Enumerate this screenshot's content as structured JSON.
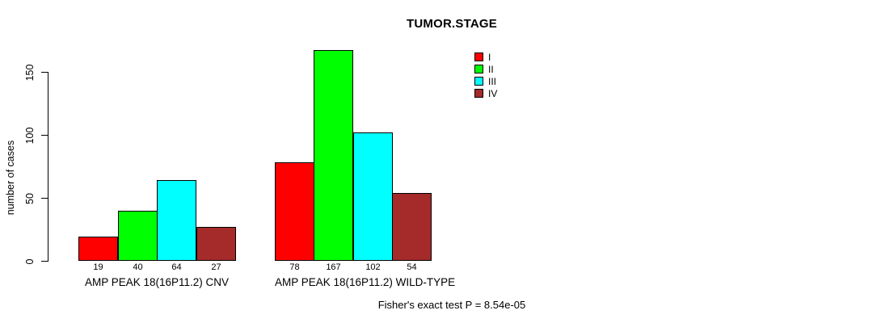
{
  "chart_data": {
    "type": "bar",
    "title": "TUMOR.STAGE",
    "ylabel": "number of cases",
    "xlabel": "",
    "ylim": [
      0,
      150
    ],
    "yticks": [
      0,
      50,
      100,
      150
    ],
    "grid": false,
    "legend_position": "top-right",
    "categories": [
      "I",
      "II",
      "III",
      "IV"
    ],
    "colors": {
      "I": "#FF0000",
      "II": "#00FF00",
      "III": "#00FFFF",
      "IV": "#A52A2A"
    },
    "groups": [
      {
        "label": "AMP PEAK 18(16P11.2) CNV",
        "values": [
          19,
          40,
          64,
          27
        ]
      },
      {
        "label": "AMP PEAK 18(16P11.2) WILD-TYPE",
        "values": [
          78,
          167,
          102,
          54
        ]
      }
    ],
    "bar_value_labels": [
      [
        "19",
        "40",
        "64",
        "27"
      ],
      [
        "78",
        "167",
        "102",
        "54"
      ]
    ],
    "footnote": "Fisher's exact test P = 8.54e-05"
  }
}
